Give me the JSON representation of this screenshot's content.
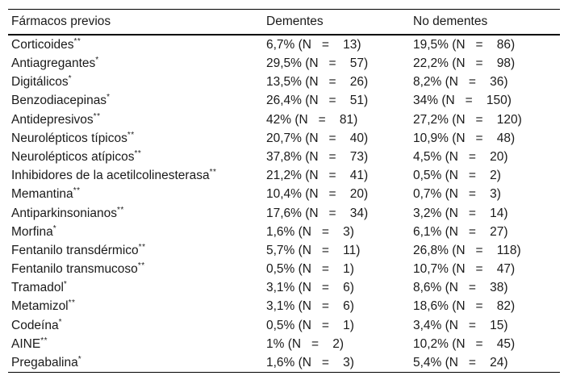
{
  "table": {
    "headers": {
      "col1": "Fármacos previos",
      "col2": "Dementes",
      "col3": "No dementes"
    },
    "rows": [
      {
        "drug": "Corticoides",
        "marker": "**",
        "dementes": {
          "pct": "6,7%",
          "n": 13,
          "text": "6,7% (N   =    13)"
        },
        "no_dementes": {
          "pct": "19,5%",
          "n": 86,
          "text": "19,5% (N   =    86)"
        }
      },
      {
        "drug": "Antiagregantes",
        "marker": "*",
        "dementes": {
          "pct": "29,5%",
          "n": 57,
          "text": "29,5% (N   =    57)"
        },
        "no_dementes": {
          "pct": "22,2%",
          "n": 98,
          "text": "22,2% (N   =    98)"
        }
      },
      {
        "drug": "Digitálicos",
        "marker": "*",
        "dementes": {
          "pct": "13,5%",
          "n": 26,
          "text": "13,5% (N   =    26)"
        },
        "no_dementes": {
          "pct": "8,2%",
          "n": 36,
          "text": "8,2% (N   =    36)"
        }
      },
      {
        "drug": "Benzodiacepinas",
        "marker": "*",
        "dementes": {
          "pct": "26,4%",
          "n": 51,
          "text": "26,4% (N   =    51)"
        },
        "no_dementes": {
          "pct": "34%",
          "n": 150,
          "text": "34% (N   =    150)"
        }
      },
      {
        "drug": "Antidepresivos",
        "marker": "**",
        "dementes": {
          "pct": "42%",
          "n": 81,
          "text": "42% (N   =    81)"
        },
        "no_dementes": {
          "pct": "27,2%",
          "n": 120,
          "text": "27,2% (N   =    120)"
        }
      },
      {
        "drug": "Neurolépticos típicos",
        "marker": "**",
        "dementes": {
          "pct": "20,7%",
          "n": 40,
          "text": "20,7% (N   =    40)"
        },
        "no_dementes": {
          "pct": "10,9%",
          "n": 48,
          "text": "10,9% (N   =    48)"
        }
      },
      {
        "drug": "Neurolépticos atípicos",
        "marker": "**",
        "dementes": {
          "pct": "37,8%",
          "n": 73,
          "text": "37,8% (N   =    73)"
        },
        "no_dementes": {
          "pct": "4,5%",
          "n": 20,
          "text": "4,5% (N   =    20)"
        }
      },
      {
        "drug": "Inhibidores de la acetilcolinesterasa",
        "marker": "**",
        "dementes": {
          "pct": "21,2%",
          "n": 41,
          "text": "21,2% (N   =    41)"
        },
        "no_dementes": {
          "pct": "0,5%",
          "n": 2,
          "text": "0,5% (N   =    2)"
        }
      },
      {
        "drug": "Memantina",
        "marker": "**",
        "dementes": {
          "pct": "10,4%",
          "n": 20,
          "text": "10,4% (N   =    20)"
        },
        "no_dementes": {
          "pct": "0,7%",
          "n": 3,
          "text": "0,7% (N   =    3)"
        }
      },
      {
        "drug": "Antiparkinsonianos",
        "marker": "**",
        "dementes": {
          "pct": "17,6%",
          "n": 34,
          "text": "17,6% (N   =    34)"
        },
        "no_dementes": {
          "pct": "3,2%",
          "n": 14,
          "text": "3,2% (N   =    14)"
        }
      },
      {
        "drug": "Morfina",
        "marker": "*",
        "dementes": {
          "pct": "1,6%",
          "n": 3,
          "text": "1,6% (N   =    3)"
        },
        "no_dementes": {
          "pct": "6,1%",
          "n": 27,
          "text": "6,1% (N   =    27)"
        }
      },
      {
        "drug": "Fentanilo transdérmico",
        "marker": "**",
        "dementes": {
          "pct": "5,7%",
          "n": 11,
          "text": "5,7% (N   =    11)"
        },
        "no_dementes": {
          "pct": "26,8%",
          "n": 118,
          "text": "26,8% (N   =    118)"
        }
      },
      {
        "drug": "Fentanilo transmucoso",
        "marker": "**",
        "dementes": {
          "pct": "0,5%",
          "n": 1,
          "text": "0,5% (N   =    1)"
        },
        "no_dementes": {
          "pct": "10,7%",
          "n": 47,
          "text": "10,7% (N   =    47)"
        }
      },
      {
        "drug": "Tramadol",
        "marker": "*",
        "dementes": {
          "pct": "3,1%",
          "n": 6,
          "text": "3,1% (N   =    6)"
        },
        "no_dementes": {
          "pct": "8,6%",
          "n": 38,
          "text": "8,6% (N   =    38)"
        }
      },
      {
        "drug": "Metamizol",
        "marker": "**",
        "dementes": {
          "pct": "3,1%",
          "n": 6,
          "text": "3,1% (N   =    6)"
        },
        "no_dementes": {
          "pct": "18,6%",
          "n": 82,
          "text": "18,6% (N   =    82)"
        }
      },
      {
        "drug": "Codeína",
        "marker": "*",
        "dementes": {
          "pct": "0,5%",
          "n": 1,
          "text": "0,5% (N   =    1)"
        },
        "no_dementes": {
          "pct": "3,4%",
          "n": 15,
          "text": "3,4% (N   =    15)"
        }
      },
      {
        "drug": "AINE",
        "marker": "**",
        "dementes": {
          "pct": "1%",
          "n": 2,
          "text": "1% (N   =    2)"
        },
        "no_dementes": {
          "pct": "10,2%",
          "n": 45,
          "text": "10,2% (N   =    45)"
        }
      },
      {
        "drug": "Pregabalina",
        "marker": "*",
        "dementes": {
          "pct": "1,6%",
          "n": 3,
          "text": "1,6% (N   =    3)"
        },
        "no_dementes": {
          "pct": "5,4%",
          "n": 24,
          "text": "5,4% (N   =    24)"
        }
      }
    ]
  }
}
